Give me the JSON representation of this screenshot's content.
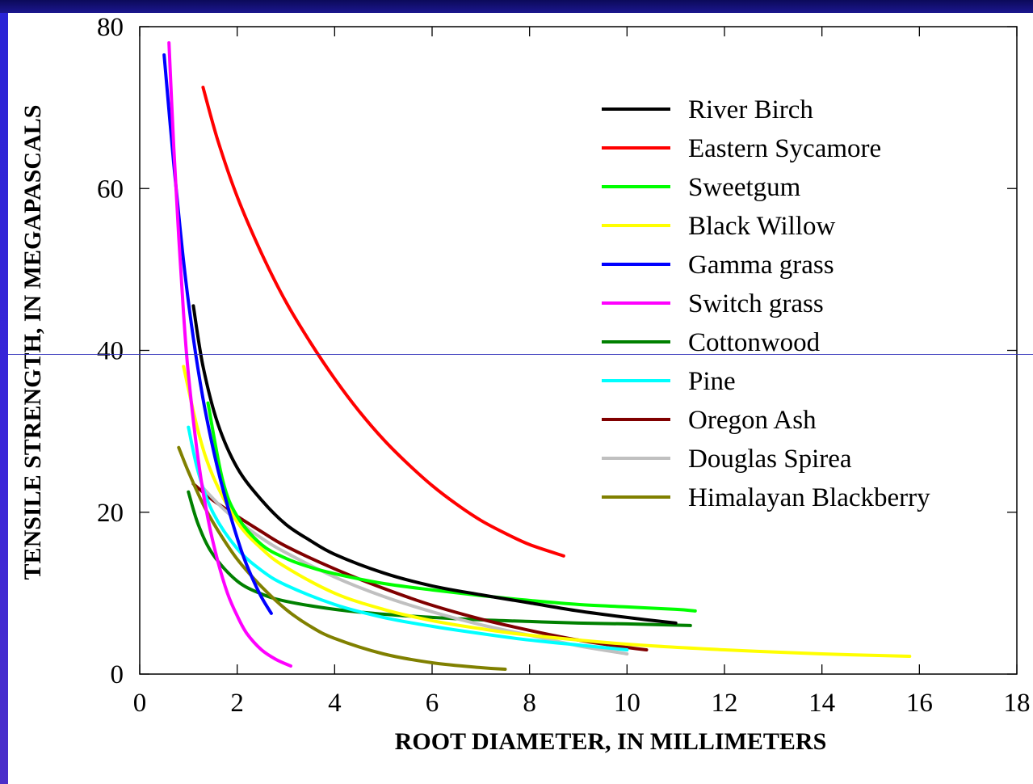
{
  "chart_data": {
    "type": "line",
    "title": "",
    "xlabel": "ROOT DIAMETER, IN MILLIMETERS",
    "ylabel": "TENSILE STRENGTH, IN MEGAPASCALS",
    "xlim": [
      0,
      18
    ],
    "ylim": [
      0,
      80
    ],
    "xticks": [
      0,
      2,
      4,
      6,
      8,
      10,
      12,
      14,
      16,
      18
    ],
    "yticks": [
      0,
      20,
      40,
      60,
      80
    ],
    "grid": false,
    "legend_position": "top-right",
    "series": [
      {
        "name": "River Birch",
        "color": "#000000",
        "x": [
          1.1,
          1.3,
          1.6,
          2.0,
          2.5,
          3.0,
          3.5,
          4.0,
          5.0,
          6.0,
          7.0,
          8.0,
          9.0,
          10.0,
          11.0
        ],
        "y": [
          45.5,
          38.0,
          31.0,
          25.5,
          21.5,
          18.5,
          16.5,
          14.8,
          12.5,
          10.9,
          9.8,
          8.8,
          7.8,
          7.0,
          6.3
        ]
      },
      {
        "name": "Eastern Sycamore",
        "color": "#ff0000",
        "x": [
          1.3,
          1.6,
          2.0,
          2.5,
          3.0,
          3.5,
          4.0,
          4.5,
          5.0,
          5.5,
          6.0,
          6.5,
          7.0,
          7.5,
          8.0,
          8.7
        ],
        "y": [
          72.5,
          66.0,
          59.0,
          52.0,
          46.0,
          41.0,
          36.5,
          32.5,
          29.0,
          26.0,
          23.3,
          21.0,
          19.0,
          17.4,
          16.0,
          14.6
        ]
      },
      {
        "name": "Sweetgum",
        "color": "#00ff00",
        "x": [
          1.4,
          1.7,
          2.0,
          2.5,
          3.0,
          3.5,
          4.0,
          5.0,
          6.0,
          7.0,
          8.0,
          9.0,
          10.0,
          11.0,
          11.4
        ],
        "y": [
          33.5,
          24.0,
          19.5,
          16.0,
          14.3,
          13.2,
          12.4,
          11.2,
          10.4,
          9.7,
          9.1,
          8.6,
          8.3,
          8.0,
          7.8
        ]
      },
      {
        "name": "Black Willow",
        "color": "#ffff00",
        "x": [
          0.9,
          1.2,
          1.5,
          2.0,
          2.5,
          3.0,
          4.0,
          5.0,
          6.0,
          7.0,
          8.0,
          10.0,
          12.0,
          14.0,
          15.8
        ],
        "y": [
          38.0,
          30.0,
          24.5,
          18.8,
          15.5,
          13.2,
          10.0,
          8.0,
          6.6,
          5.6,
          4.8,
          3.7,
          3.0,
          2.5,
          2.2
        ]
      },
      {
        "name": "Gamma grass",
        "color": "#0000ff",
        "x": [
          0.5,
          0.7,
          0.9,
          1.1,
          1.3,
          1.5,
          1.7,
          1.9,
          2.1,
          2.3,
          2.5,
          2.7
        ],
        "y": [
          76.5,
          63.0,
          51.0,
          41.5,
          34.0,
          28.0,
          23.0,
          18.8,
          15.0,
          12.0,
          9.5,
          7.5
        ]
      },
      {
        "name": "Switch grass",
        "color": "#ff00ff",
        "x": [
          0.6,
          0.7,
          0.8,
          0.9,
          1.0,
          1.2,
          1.4,
          1.6,
          1.8,
          2.0,
          2.2,
          2.5,
          2.8,
          3.1
        ],
        "y": [
          78.0,
          65.0,
          54.0,
          44.5,
          37.0,
          26.5,
          19.2,
          14.0,
          10.0,
          7.2,
          5.0,
          3.0,
          1.8,
          1.0
        ]
      },
      {
        "name": "Cottonwood",
        "color": "#008000",
        "x": [
          1.0,
          1.2,
          1.5,
          2.0,
          2.5,
          3.0,
          4.0,
          5.0,
          6.0,
          7.0,
          8.0,
          9.0,
          10.0,
          11.3
        ],
        "y": [
          22.5,
          18.5,
          14.8,
          11.5,
          9.9,
          9.0,
          8.0,
          7.4,
          7.0,
          6.7,
          6.5,
          6.3,
          6.2,
          6.0
        ]
      },
      {
        "name": "Pine",
        "color": "#00ffff",
        "x": [
          1.0,
          1.2,
          1.5,
          2.0,
          2.5,
          3.0,
          4.0,
          5.0,
          6.0,
          7.0,
          8.0,
          9.0,
          10.0
        ],
        "y": [
          30.5,
          25.0,
          20.0,
          15.5,
          12.8,
          11.0,
          8.6,
          7.0,
          5.9,
          5.0,
          4.2,
          3.6,
          3.0
        ]
      },
      {
        "name": "Oregon Ash",
        "color": "#800000",
        "x": [
          1.1,
          1.5,
          2.0,
          2.5,
          3.0,
          4.0,
          5.0,
          6.0,
          7.0,
          8.0,
          9.0,
          10.0,
          10.4
        ],
        "y": [
          23.5,
          21.5,
          19.5,
          17.6,
          15.8,
          13.0,
          10.6,
          8.5,
          6.8,
          5.4,
          4.2,
          3.3,
          3.0
        ]
      },
      {
        "name": "Douglas Spirea",
        "color": "#c0c0c0",
        "x": [
          1.3,
          1.7,
          2.0,
          2.5,
          3.0,
          4.0,
          5.0,
          6.0,
          7.0,
          8.0,
          9.0,
          10.0
        ],
        "y": [
          23.0,
          20.5,
          19.0,
          16.8,
          15.0,
          12.0,
          9.6,
          7.7,
          6.1,
          4.8,
          3.5,
          2.5
        ]
      },
      {
        "name": "Himalayan Blackberry",
        "color": "#808000",
        "x": [
          0.8,
          1.0,
          1.3,
          1.6,
          2.0,
          2.5,
          3.0,
          3.5,
          4.0,
          5.0,
          6.0,
          7.0,
          7.5
        ],
        "y": [
          28.0,
          25.0,
          21.0,
          17.8,
          14.2,
          10.8,
          8.0,
          5.9,
          4.4,
          2.5,
          1.4,
          0.8,
          0.6
        ]
      }
    ]
  }
}
